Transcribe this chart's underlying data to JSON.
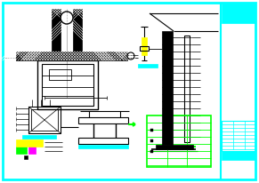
{
  "bg_color": "#ffffff",
  "line_color": "#000000",
  "cyan_color": "#00ffff",
  "yellow_color": "#ffff00",
  "green_color": "#00ff00",
  "magenta_color": "#ff00ff",
  "gray_color": "#aaaaaa"
}
